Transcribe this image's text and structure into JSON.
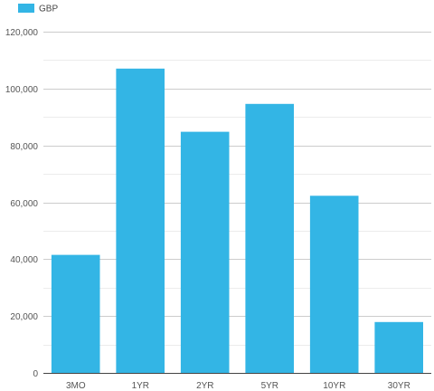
{
  "chart_data": {
    "type": "bar",
    "categories": [
      "3MO",
      "1YR",
      "2YR",
      "5YR",
      "10YR",
      "30YR"
    ],
    "series": [
      {
        "name": "GBP",
        "color": "#33b5e5",
        "values": [
          41500,
          107000,
          84800,
          94600,
          62300,
          17900
        ]
      }
    ],
    "ylim": [
      0,
      120000
    ],
    "yticks": [
      0,
      20000,
      40000,
      60000,
      80000,
      100000,
      120000
    ],
    "ytick_labels": [
      "0",
      "20,000",
      "40,000",
      "60,000",
      "80,000",
      "100,000",
      "120,000"
    ],
    "minor_grid_step": 10000,
    "grid": true,
    "legend_position": "top-left",
    "title": "",
    "xlabel": "",
    "ylabel": ""
  }
}
